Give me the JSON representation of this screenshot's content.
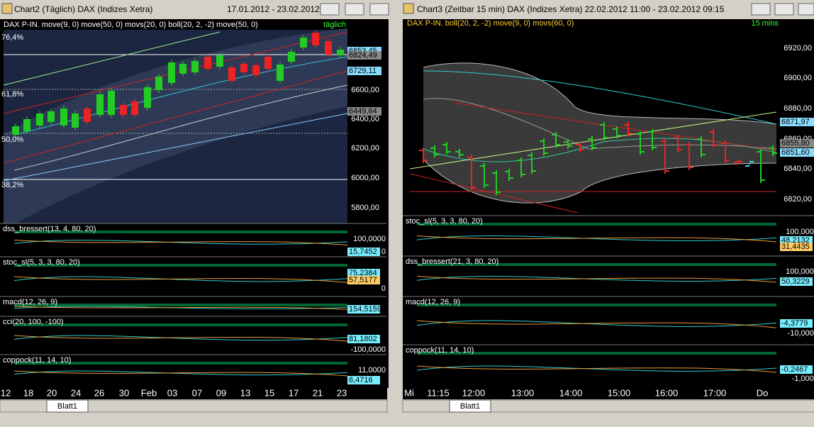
{
  "left": {
    "title": "Chart2 (Täglich)  DAX (Indizes Xetra)",
    "date_range": "17.01.2012 - 23.02.2012",
    "header": "DAX P-IN. move(9, 0) move(50, 0) movs(20, 0) boll(20, 2, -2) move(50, 0)",
    "tag": "täglich",
    "price_ticks": [
      "6600,00",
      "6400,00",
      "6200,00",
      "6000,00",
      "5800,00"
    ],
    "badges": [
      "6853,45",
      "6824,49",
      "6729,11",
      "6449,64"
    ],
    "fib_levels": [
      "76,4%",
      "61,8%",
      "50,0%",
      "38,2%"
    ],
    "panels": [
      {
        "label": "dss_bressert(13, 4, 80, 20)",
        "ticks": [
          "100,0000",
          "0"
        ],
        "badges": [
          "15,7452"
        ]
      },
      {
        "label": "stoc_sl(5, 3, 3, 80, 20)",
        "ticks": [
          "0"
        ],
        "badges": [
          "75,2384",
          "57,5177"
        ]
      },
      {
        "label": "macd(12, 26, 9)",
        "ticks": [],
        "badges": [
          "154,5159"
        ]
      },
      {
        "label": "cci(20, 100, -100)",
        "ticks": [
          "-100,0000"
        ],
        "badges": [
          "81,1802"
        ]
      },
      {
        "label": "coppock(11, 14, 10)",
        "ticks": [
          "11,0000"
        ],
        "badges": [
          "6,4716"
        ]
      }
    ],
    "x_labels": [
      "12",
      "18",
      "20",
      "24",
      "26",
      "30",
      "Feb",
      "03",
      "07",
      "09",
      "13",
      "15",
      "17",
      "21",
      "23"
    ],
    "sheet": "Blatt1"
  },
  "right": {
    "title": "Chart3 (Zeitbar 15 min)  DAX (Indizes Xetra) 22.02.2012 11:00 - 23.02.2012 09:15",
    "header": "DAX P-IN. boll(20, 2, -2) move(9, 0) movs(60, 0)",
    "tag": "15 mins",
    "price_ticks": [
      "6920,00",
      "6900,00",
      "6880,00",
      "6860,00",
      "6840,00",
      "6820,00"
    ],
    "badges": [
      "6871,97",
      "6855,80",
      "6851,60"
    ],
    "panels": [
      {
        "label": "stoc_sl(5, 3, 3, 80, 20)",
        "ticks": [
          "100,0000"
        ],
        "badges": [
          "48,2132",
          "31,4435"
        ]
      },
      {
        "label": "dss_bressert(21, 3, 80, 20)",
        "ticks": [
          "100,0000"
        ],
        "badges": [
          "50,3229"
        ]
      },
      {
        "label": "macd(12, 26, 9)",
        "ticks": [
          "-10,0000"
        ],
        "badges": [
          "-4,3779"
        ]
      },
      {
        "label": "coppock(11, 14, 10)",
        "ticks": [
          "-1,0000"
        ],
        "badges": [
          "-0,2467"
        ]
      }
    ],
    "x_labels": [
      "Mi",
      "11:15",
      "12:00",
      "13:00",
      "14:00",
      "15:00",
      "16:00",
      "17:00",
      "Do"
    ],
    "sheet": "Blatt1"
  }
}
